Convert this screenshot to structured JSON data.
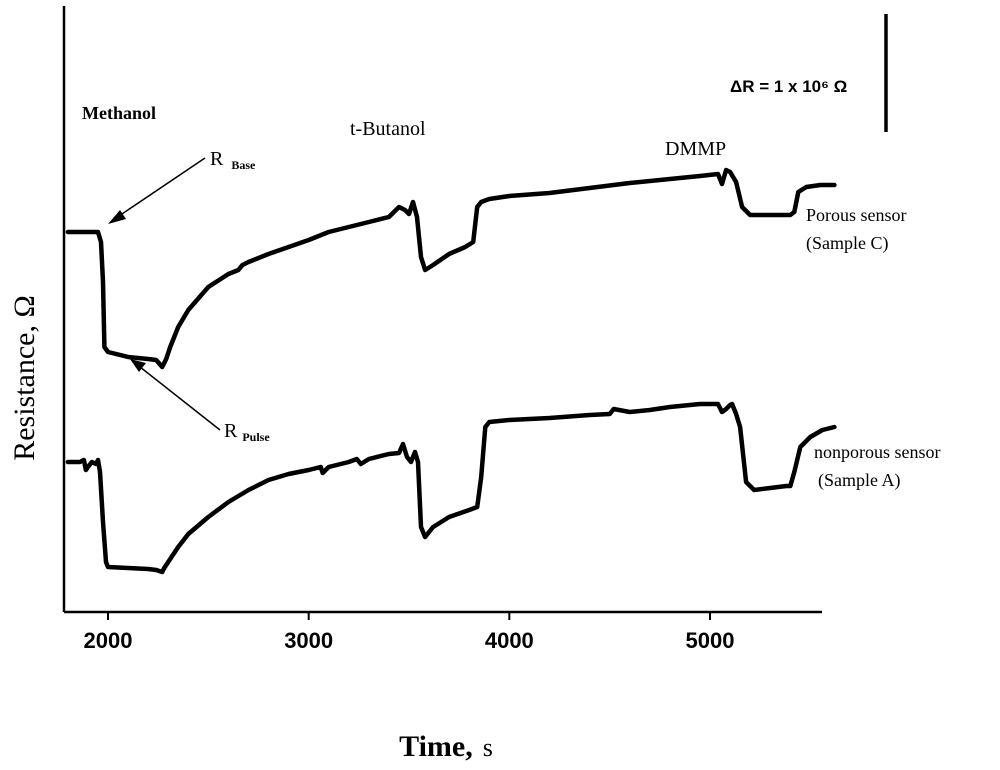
{
  "chart_data": {
    "type": "line",
    "xlabel_main": "Time,",
    "xlabel_unit": "s",
    "ylabel": "Resistance, Ω",
    "xlim": [
      1800,
      5650
    ],
    "x_ticks": [
      2000,
      3000,
      4000,
      5000
    ],
    "y_ticks_shown": false,
    "scale_bar_label": "ΔR = 1 x 10⁶ Ω",
    "scale_bar_value": 1000000,
    "annotations": {
      "methanol": "Methanol",
      "t_butanol": "t-Butanol",
      "dmmp": "DMMP",
      "r_base_main": "R",
      "r_base_sub": "Base",
      "r_pulse_main": "R",
      "r_pulse_sub": "Pulse"
    },
    "series": [
      {
        "name_line1": "Porous sensor",
        "name_line2": "(Sample C)",
        "color": "#000000",
        "x": [
          1800,
          1880,
          1950,
          1965,
          1975,
          1982,
          2000,
          2100,
          2200,
          2240,
          2270,
          2290,
          2310,
          2350,
          2400,
          2500,
          2600,
          2650,
          2670,
          2700,
          2800,
          2900,
          3000,
          3100,
          3200,
          3300,
          3400,
          3450,
          3480,
          3500,
          3520,
          3540,
          3560,
          3580,
          3620,
          3700,
          3780,
          3820,
          3840,
          3860,
          3900,
          4000,
          4200,
          4400,
          4600,
          4800,
          4950,
          5040,
          5060,
          5080,
          5100,
          5130,
          5160,
          5200,
          5300,
          5400,
          5420,
          5440,
          5480,
          5550,
          5620
        ],
        "y": [
          0.0,
          0.0,
          0.0,
          -0.1,
          -0.5,
          -1.15,
          -1.2,
          -1.25,
          -1.27,
          -1.28,
          -1.35,
          -1.27,
          -1.15,
          -0.95,
          -0.78,
          -0.55,
          -0.42,
          -0.38,
          -0.33,
          -0.3,
          -0.22,
          -0.15,
          -0.08,
          0.0,
          0.05,
          0.1,
          0.15,
          0.25,
          0.22,
          0.18,
          0.3,
          0.15,
          -0.25,
          -0.38,
          -0.33,
          -0.22,
          -0.15,
          -0.1,
          0.25,
          0.3,
          0.33,
          0.36,
          0.39,
          0.44,
          0.49,
          0.53,
          0.56,
          0.58,
          0.48,
          0.62,
          0.6,
          0.5,
          0.25,
          0.17,
          0.17,
          0.17,
          0.2,
          0.4,
          0.45,
          0.47,
          0.47
        ]
      },
      {
        "name_line1": "nonporous sensor",
        "name_line2": "(Sample A)",
        "color": "#000000",
        "x": [
          1800,
          1860,
          1880,
          1890,
          1900,
          1920,
          1940,
          1950,
          1960,
          1975,
          1990,
          2000,
          2100,
          2200,
          2240,
          2270,
          2280,
          2300,
          2350,
          2400,
          2500,
          2600,
          2700,
          2800,
          2900,
          3000,
          3060,
          3070,
          3100,
          3200,
          3240,
          3260,
          3300,
          3400,
          3450,
          3470,
          3490,
          3510,
          3530,
          3545,
          3560,
          3580,
          3620,
          3700,
          3800,
          3840,
          3860,
          3880,
          3900,
          4000,
          4200,
          4400,
          4500,
          4520,
          4600,
          4700,
          4800,
          4950,
          5040,
          5060,
          5080,
          5100,
          5110,
          5130,
          5150,
          5180,
          5220,
          5300,
          5380,
          5400,
          5420,
          5450,
          5500,
          5560,
          5620
        ],
        "y": [
          0.0,
          0.0,
          0.02,
          -0.08,
          -0.05,
          0.0,
          -0.02,
          0.02,
          -0.1,
          -0.6,
          -1.0,
          -1.05,
          -1.06,
          -1.07,
          -1.08,
          -1.1,
          -1.06,
          -1.0,
          -0.85,
          -0.72,
          -0.55,
          -0.4,
          -0.28,
          -0.18,
          -0.12,
          -0.08,
          -0.05,
          -0.11,
          -0.05,
          0.0,
          0.03,
          -0.02,
          0.03,
          0.08,
          0.09,
          0.18,
          0.05,
          0.0,
          0.1,
          0.0,
          -0.65,
          -0.75,
          -0.65,
          -0.55,
          -0.48,
          -0.45,
          -0.15,
          0.35,
          0.4,
          0.42,
          0.44,
          0.47,
          0.48,
          0.53,
          0.5,
          0.52,
          0.55,
          0.58,
          0.58,
          0.5,
          0.53,
          0.57,
          0.58,
          0.48,
          0.35,
          -0.2,
          -0.28,
          -0.26,
          -0.24,
          -0.24,
          -0.1,
          0.15,
          0.25,
          0.32,
          0.35
        ]
      }
    ]
  }
}
